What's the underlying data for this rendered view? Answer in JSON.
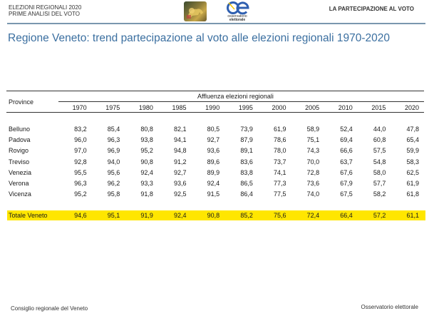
{
  "header": {
    "line1": "ELEZIONI REGIONALI 2020",
    "line2": "PRIME ANALISI DEL VOTO",
    "section": "LA PARTECIPAZIONE AL VOTO",
    "logo_oe": {
      "mark": "oe",
      "line1": "osservatorio",
      "line2": "elettorale"
    }
  },
  "title": "Regione Veneto: trend partecipazione al voto alle elezioni regionali 1970-2020",
  "table": {
    "row_header": "Province",
    "group_header": "Affluenza elezioni regionali",
    "years": [
      "1970",
      "1975",
      "1980",
      "1985",
      "1990",
      "1995",
      "2000",
      "2005",
      "2010",
      "2015",
      "2020"
    ],
    "rows": [
      {
        "name": "Belluno",
        "values": [
          "83,2",
          "85,4",
          "80,8",
          "82,1",
          "80,5",
          "73,9",
          "61,9",
          "58,9",
          "52,4",
          "44,0",
          "47,8"
        ]
      },
      {
        "name": "Padova",
        "values": [
          "96,0",
          "96,3",
          "93,8",
          "94,1",
          "92,7",
          "87,9",
          "78,6",
          "75,1",
          "69,4",
          "60,8",
          "65,4"
        ]
      },
      {
        "name": "Rovigo",
        "values": [
          "97,0",
          "96,9",
          "95,2",
          "94,8",
          "93,6",
          "89,1",
          "78,0",
          "74,3",
          "66,6",
          "57,5",
          "59,9"
        ]
      },
      {
        "name": "Treviso",
        "values": [
          "92,8",
          "94,0",
          "90,8",
          "91,2",
          "89,6",
          "83,6",
          "73,7",
          "70,0",
          "63,7",
          "54,8",
          "58,3"
        ]
      },
      {
        "name": "Venezia",
        "values": [
          "95,5",
          "95,6",
          "92,4",
          "92,7",
          "89,9",
          "83,8",
          "74,1",
          "72,8",
          "67,6",
          "58,0",
          "62,5"
        ]
      },
      {
        "name": "Verona",
        "values": [
          "96,3",
          "96,2",
          "93,3",
          "93,6",
          "92,4",
          "86,5",
          "77,3",
          "73,6",
          "67,9",
          "57,7",
          "61,9"
        ]
      },
      {
        "name": "Vicenza",
        "values": [
          "95,2",
          "95,8",
          "91,8",
          "92,5",
          "91,5",
          "86,4",
          "77,5",
          "74,0",
          "67,5",
          "58,2",
          "61,8"
        ]
      }
    ],
    "total": {
      "name": "Totale Veneto",
      "values": [
        "94,6",
        "95,1",
        "91,9",
        "92,4",
        "90,8",
        "85,2",
        "75,6",
        "72,4",
        "66,4",
        "57,2",
        "61,1"
      ]
    },
    "highlight_color": "#ffe600"
  },
  "footer": {
    "left": "Consiglio regionale del Veneto",
    "right": "Osservatorio elettorale"
  }
}
